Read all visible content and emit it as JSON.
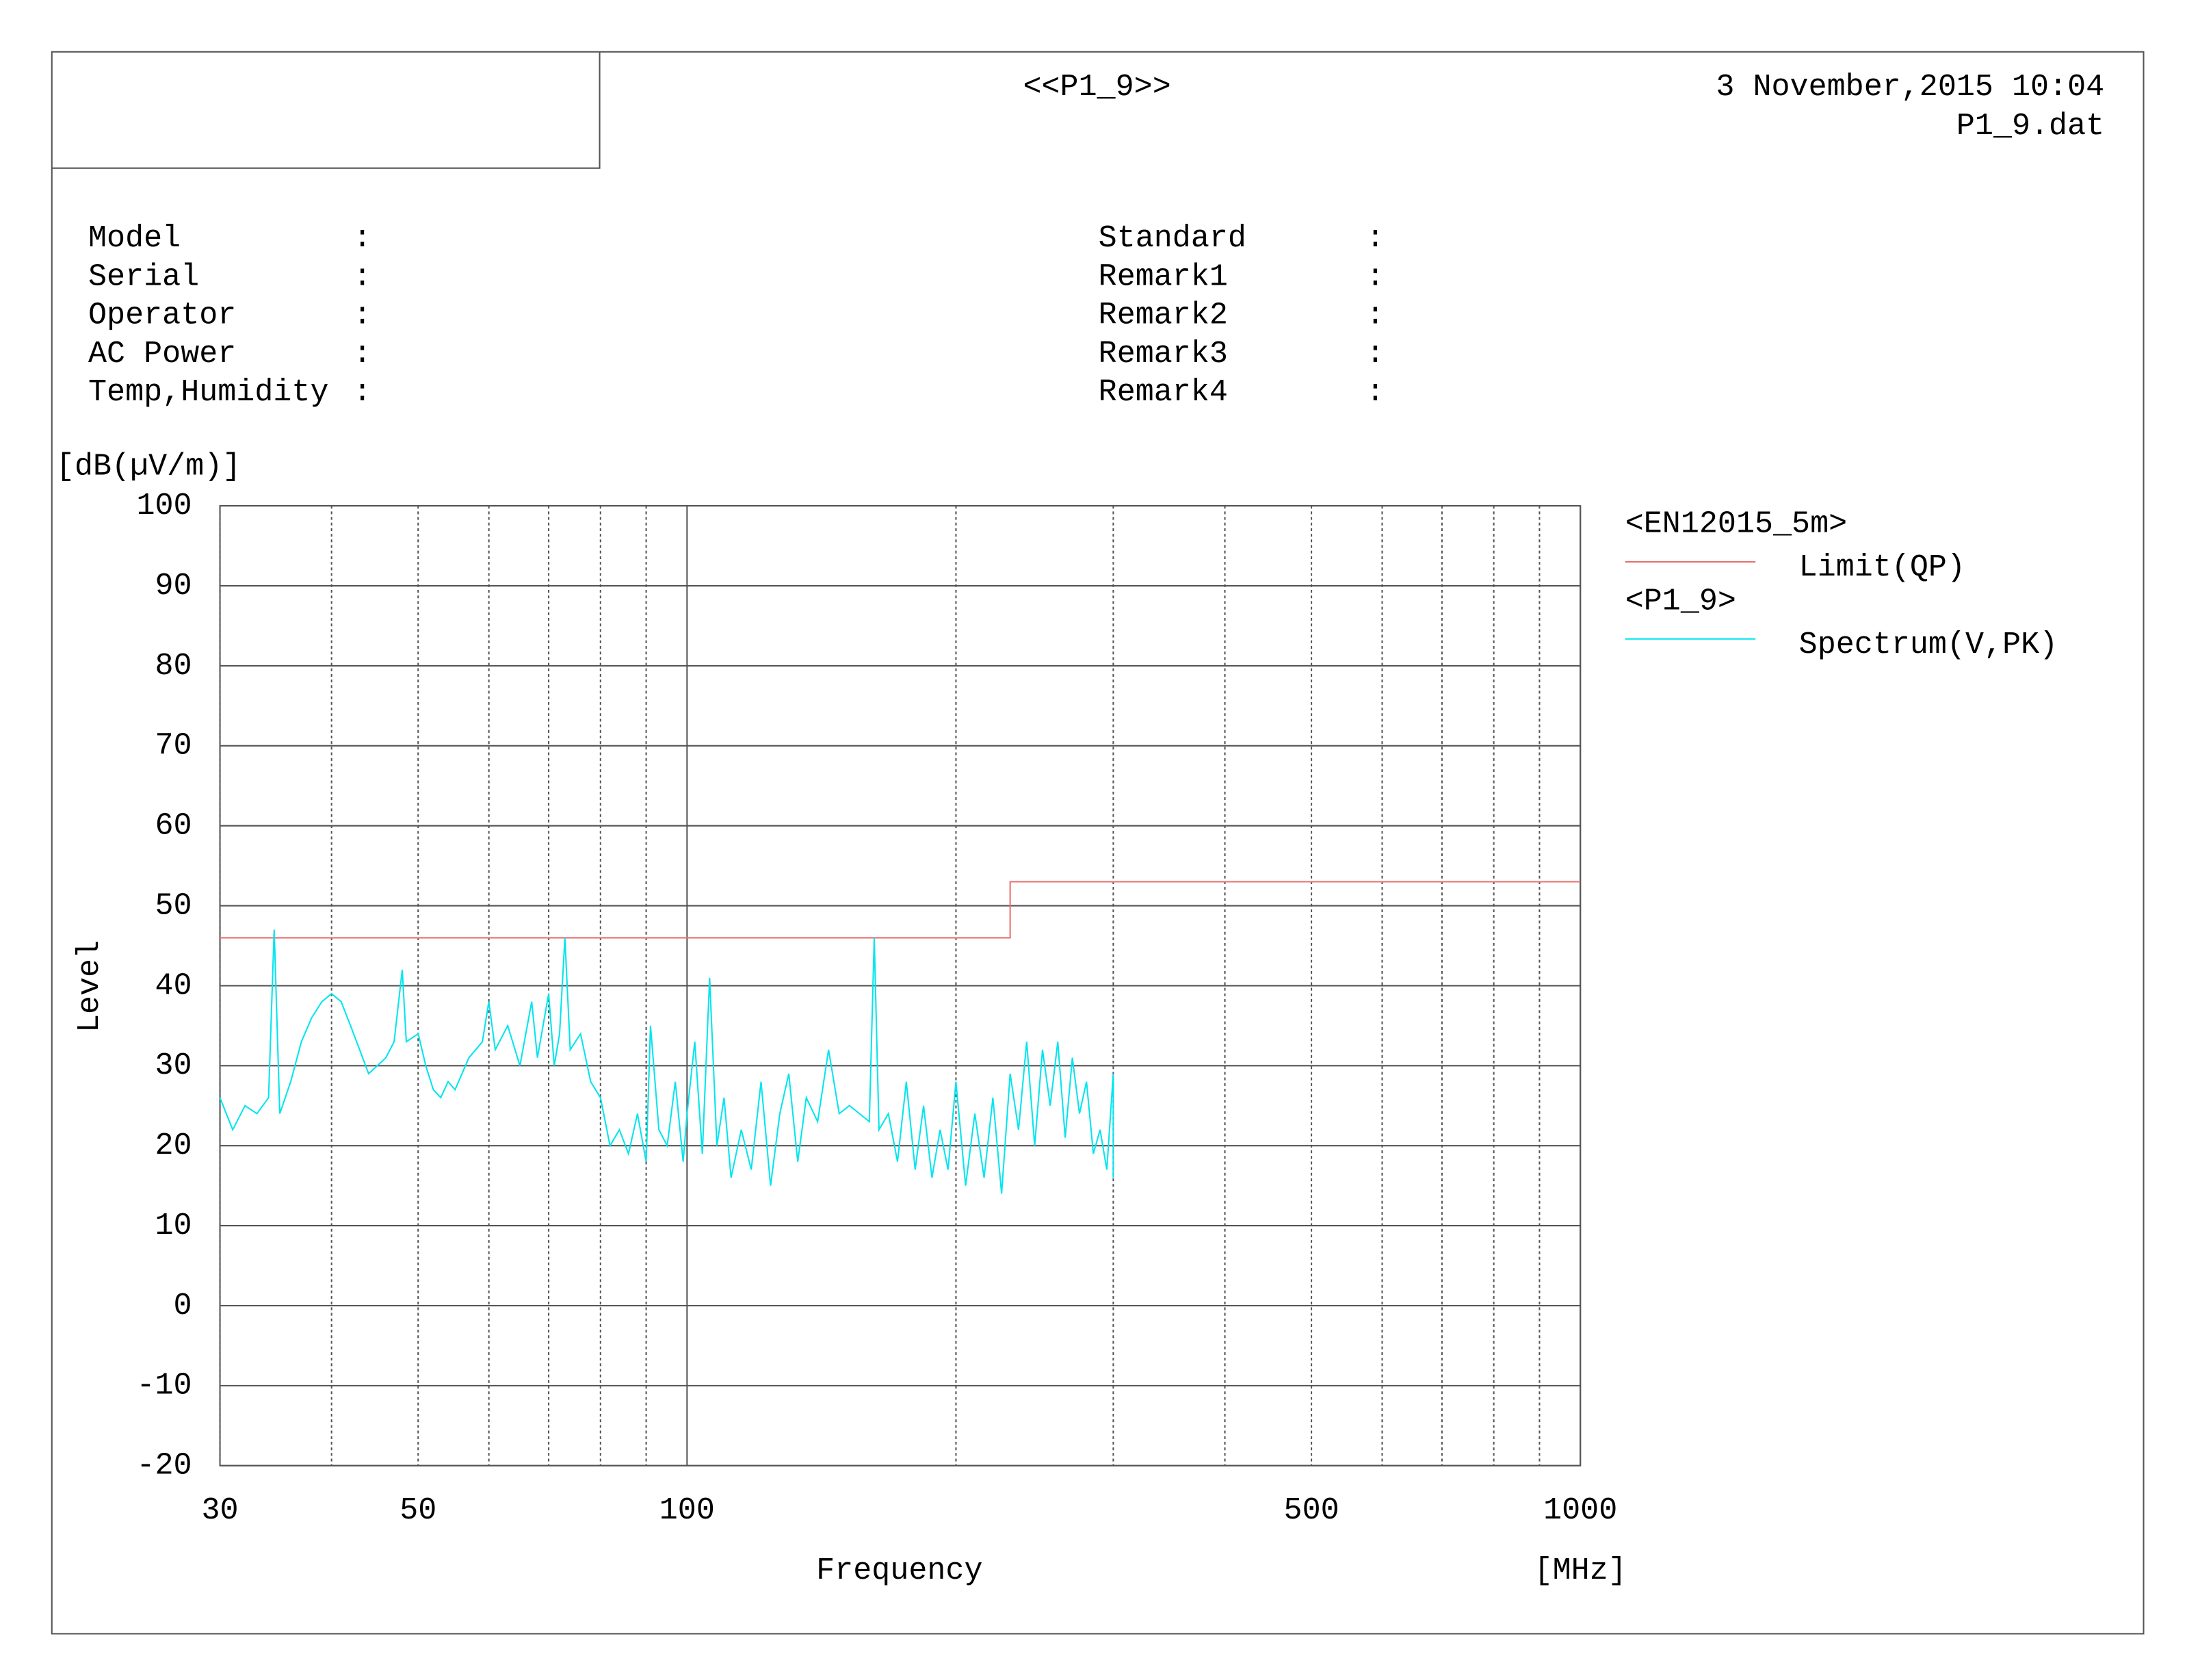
{
  "header": {
    "title": "<<P1_9>>",
    "date": "3 November,2015 10:04",
    "file": "P1_9.dat"
  },
  "info": {
    "separator": ":",
    "left": [
      "Model",
      "Serial",
      "Operator",
      "AC Power",
      "Temp,Humidity"
    ],
    "right": [
      "Standard",
      "Remark1",
      "Remark2",
      "Remark3",
      "Remark4"
    ]
  },
  "chart_data": {
    "type": "line",
    "log_x": true,
    "y_unit": "[dB(µV/m)]",
    "y_label": "Level",
    "x_label": "Frequency",
    "x_unit": "[MHz]",
    "xlim": [
      30,
      1000
    ],
    "ylim": [
      -20,
      100
    ],
    "xticks": [
      30,
      50,
      100,
      500,
      1000
    ],
    "x_grid": [
      30,
      40,
      50,
      60,
      70,
      80,
      90,
      100,
      200,
      300,
      400,
      500,
      600,
      700,
      800,
      900,
      1000
    ],
    "yticks": [
      -20,
      -10,
      0,
      10,
      20,
      30,
      40,
      50,
      60,
      70,
      80,
      90,
      100
    ],
    "grid": true,
    "legend_groups": [
      "<EN12015_5m>",
      "<P1_9>"
    ],
    "series": [
      {
        "name": "Limit(QP)",
        "color": "#e8706e",
        "x": [
          30,
          230,
          230,
          1000
        ],
        "values": [
          46,
          46,
          53,
          53
        ]
      },
      {
        "name": "Spectrum(V,PK)",
        "color": "#00e5ee",
        "x": [
          30,
          31,
          32,
          33,
          34,
          34.5,
          35,
          36,
          37,
          38,
          39,
          40,
          41,
          42,
          43,
          44,
          45,
          46,
          47,
          48,
          48.5,
          50,
          51,
          52,
          53,
          54,
          55,
          57,
          59,
          60,
          61,
          63,
          65,
          67,
          68,
          70,
          71,
          72,
          73,
          74,
          76,
          78,
          80,
          82,
          84,
          86,
          88,
          90,
          91,
          93,
          95,
          97,
          99,
          100,
          102,
          104,
          106,
          108,
          110,
          112,
          115,
          118,
          121,
          124,
          127,
          130,
          133,
          136,
          140,
          144,
          148,
          152,
          156,
          160,
          162,
          164,
          168,
          172,
          176,
          180,
          184,
          188,
          192,
          196,
          200,
          205,
          210,
          215,
          220,
          225,
          230,
          235,
          240,
          245,
          250,
          255,
          260,
          265,
          270,
          275,
          280,
          285,
          290,
          295,
          300,
          300
        ],
        "values": [
          26,
          22,
          25,
          24,
          26,
          47,
          24,
          28,
          33,
          36,
          38,
          39,
          38,
          35,
          32,
          29,
          30,
          31,
          33,
          42,
          33,
          34,
          30,
          27,
          26,
          28,
          27,
          31,
          33,
          38,
          32,
          35,
          30,
          38,
          31,
          39,
          30,
          34,
          46,
          32,
          34,
          28,
          26,
          20,
          22,
          19,
          24,
          18,
          35,
          22,
          20,
          28,
          18,
          24,
          33,
          19,
          41,
          20,
          26,
          16,
          22,
          17,
          28,
          15,
          24,
          29,
          18,
          26,
          23,
          32,
          24,
          25,
          24,
          23,
          46,
          22,
          24,
          18,
          28,
          17,
          25,
          16,
          22,
          17,
          28,
          15,
          24,
          16,
          26,
          14,
          29,
          22,
          33,
          20,
          32,
          25,
          33,
          21,
          31,
          24,
          28,
          19,
          22,
          17,
          29,
          16
        ]
      }
    ]
  }
}
